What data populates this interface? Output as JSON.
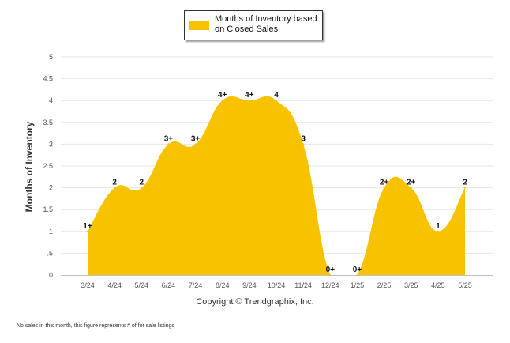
{
  "legend": {
    "label_line1": "Months of Inventory based",
    "label_line2": "on Closed Sales",
    "swatch_color": "#f7c200"
  },
  "copyright": "Copyright © Trendgraphix, Inc.",
  "footnote": "→ No sales in this month, this figure represents # of for sale listings",
  "chart_data": {
    "type": "area",
    "title": "",
    "xlabel": "",
    "ylabel": "Months of Inventory",
    "ylim": [
      0,
      5
    ],
    "y_ticks": [
      "0",
      ".5",
      "1",
      "1.5",
      "2",
      "2.5",
      "3",
      "3.5",
      "4",
      "4.5",
      "5"
    ],
    "grid": true,
    "legend_position": "top-center",
    "color": "#f7c200",
    "categories": [
      "3/24",
      "4/24",
      "5/24",
      "6/24",
      "7/24",
      "8/24",
      "9/24",
      "10/24",
      "11/24",
      "12/24",
      "1/25",
      "2/25",
      "3/25",
      "4/25",
      "5/25"
    ],
    "series": [
      {
        "name": "Months of Inventory based on Closed Sales",
        "values": [
          1,
          2,
          2,
          3,
          3,
          4,
          4,
          4,
          3,
          0,
          0,
          2,
          2,
          1,
          2
        ],
        "labels": [
          "1+",
          "2",
          "2",
          "3+",
          "3+",
          "4+",
          "4+",
          "4",
          "3",
          "0+",
          "0+",
          "2+",
          "2+",
          "1",
          "2"
        ]
      }
    ]
  }
}
